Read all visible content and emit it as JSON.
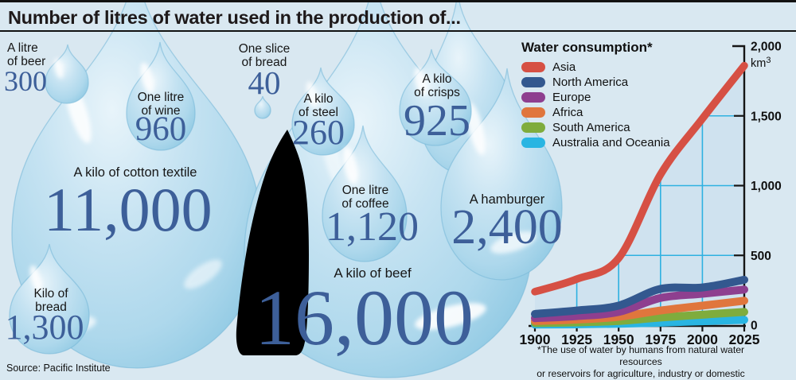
{
  "title": "Number of litres of water used in the production of...",
  "source": "Source: Pacific Institute",
  "number_color": "#3d5f99",
  "products": [
    {
      "name": "beer",
      "label": "A litre\nof beer",
      "value": "300"
    },
    {
      "name": "wine",
      "label": "One litre\nof wine",
      "value": "960"
    },
    {
      "name": "bread-slice",
      "label": "One slice\nof bread",
      "value": "40"
    },
    {
      "name": "cotton-textile",
      "label": "A kilo of cotton textile",
      "value": "11,000"
    },
    {
      "name": "steel",
      "label": "A kilo\nof steel",
      "value": "260"
    },
    {
      "name": "crisps",
      "label": "A kilo\nof crisps",
      "value": "925"
    },
    {
      "name": "coffee",
      "label": "One litre\nof coffee",
      "value": "1,120"
    },
    {
      "name": "hamburger",
      "label": "A hamburger",
      "value": "2,400"
    },
    {
      "name": "beef",
      "label": "A kilo of beef",
      "value": "16,000"
    },
    {
      "name": "bread-kilo",
      "label": "Kilo of\nbread",
      "value": "1,300"
    }
  ],
  "chart_data": {
    "type": "line",
    "title": "Water consumption*",
    "y_unit_base": "km",
    "y_unit_sup": "3",
    "x": [
      1900,
      1925,
      1950,
      1975,
      2000,
      2025
    ],
    "x_ticks": [
      "1900",
      "1925",
      "1950",
      "1975",
      "2000",
      "2025"
    ],
    "y_ticks": [
      {
        "value": 0,
        "label": "0"
      },
      {
        "value": 500,
        "label": "500"
      },
      {
        "value": 1000,
        "label": "1,000"
      },
      {
        "value": 1500,
        "label": "1,500"
      },
      {
        "value": 2000,
        "label": "2,000"
      }
    ],
    "ylim": [
      0,
      2000
    ],
    "grid": true,
    "grid_color": "#2fb1e1",
    "area_fill": "#cde1ee",
    "legend_position": "top-left",
    "series": [
      {
        "name": "Asia",
        "color": "#d65044",
        "values": [
          240,
          330,
          480,
          1080,
          1480,
          1860
        ],
        "filled_area": true
      },
      {
        "name": "North America",
        "color": "#33588f",
        "values": [
          80,
          105,
          140,
          260,
          270,
          325
        ]
      },
      {
        "name": "Europe",
        "color": "#8e3f8f",
        "values": [
          50,
          65,
          95,
          195,
          225,
          255
        ]
      },
      {
        "name": "Africa",
        "color": "#e0763d",
        "values": [
          30,
          40,
          60,
          105,
          140,
          175
        ]
      },
      {
        "name": "South America",
        "color": "#7fac3d",
        "values": [
          15,
          20,
          30,
          55,
          75,
          95
        ]
      },
      {
        "name": "Australia and Oceania",
        "color": "#29b5e2",
        "values": [
          4,
          6,
          10,
          18,
          28,
          38
        ]
      }
    ],
    "footnote": "*The use of water by humans from natural water resources\nor reservoirs for agriculture, industry or domestic purposes"
  }
}
